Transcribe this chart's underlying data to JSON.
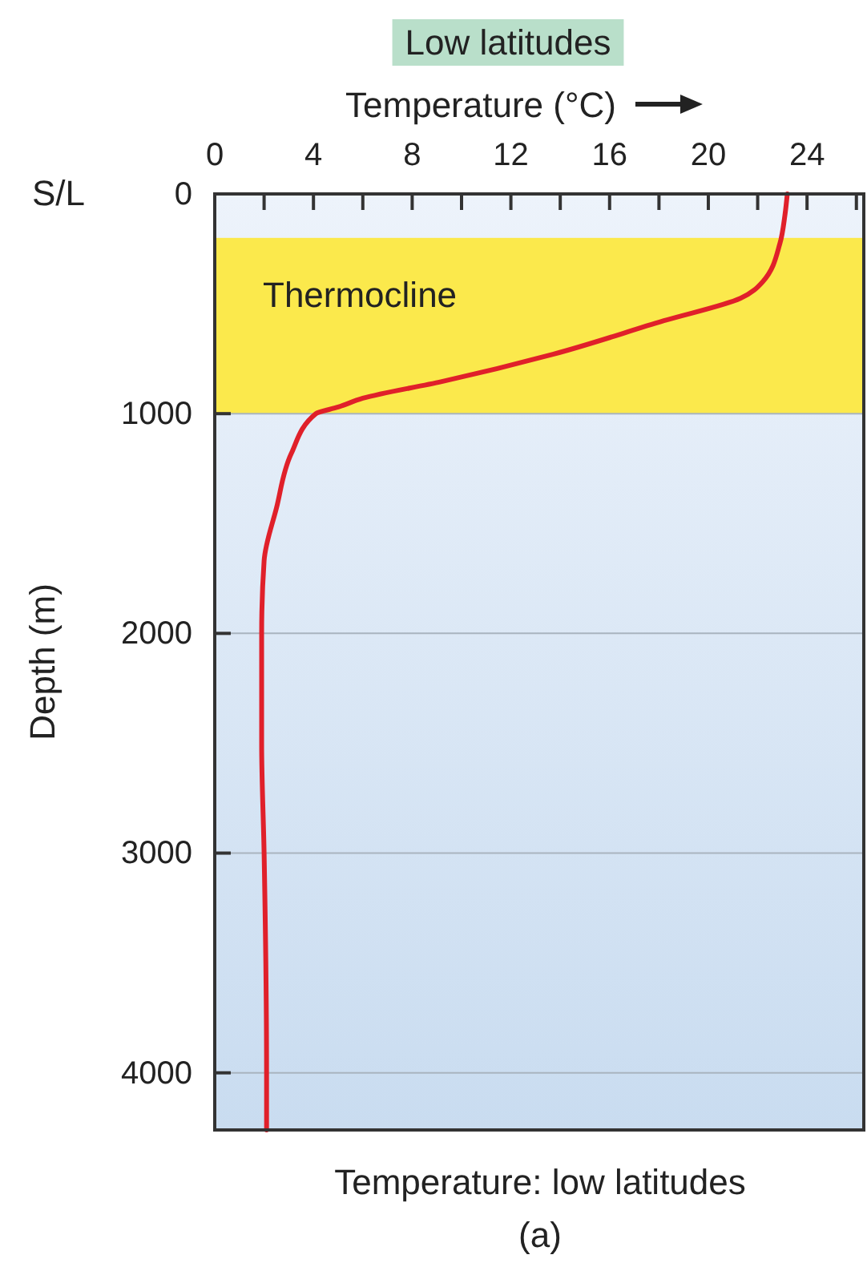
{
  "chart_data": {
    "type": "line",
    "title": "Low latitudes",
    "xlabel": "Temperature (°C)",
    "ylabel": "Depth (m)",
    "x": [
      23.2,
      23.1,
      22.9,
      22.2,
      21.3,
      18.2,
      13.7,
      9.2,
      6.0,
      5.0,
      4.1,
      3.1,
      2.5,
      2.0,
      1.9,
      1.9,
      2.0,
      2.1,
      2.1
    ],
    "series": [
      {
        "color": "#e0202a",
        "values": [
          0,
          100,
          226,
          400,
          475,
          577,
          730,
          854,
          930,
          970,
          1000,
          1182,
          1430,
          1670,
          2000,
          2500,
          3000,
          4000,
          4260
        ]
      }
    ],
    "xlim": [
      0,
      26.3
    ],
    "ylim": [
      4260,
      0
    ],
    "xticks": [
      0,
      {
        "value": 2,
        "label": null
      },
      4,
      {
        "value": 6,
        "label": null
      },
      8,
      {
        "value": 10,
        "label": null
      },
      12,
      {
        "value": 14,
        "label": null
      },
      16,
      {
        "value": 18,
        "label": null
      },
      20,
      {
        "value": 22,
        "label": null
      },
      24,
      {
        "value": 26,
        "label": null
      }
    ],
    "yticks": [
      0,
      1000,
      2000,
      3000,
      4000
    ],
    "grid": "y",
    "marker": "none",
    "line_style": "solid",
    "bands": [
      {
        "axis": "y",
        "from": 200,
        "to": 1000,
        "label": "Thermocline",
        "color": "#fbe94c"
      }
    ],
    "annotations": [
      "S/L",
      "Temperature: low latitudes",
      "(a)"
    ]
  }
}
